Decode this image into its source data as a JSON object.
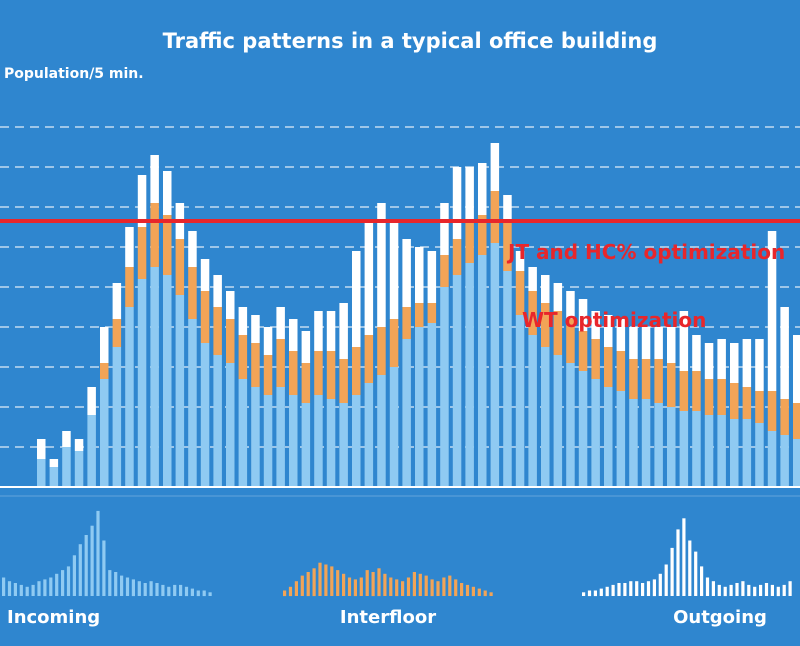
{
  "chart_data": {
    "type": "bar",
    "title": "Traffic patterns in a typical office building",
    "ylabel": "Population/5 min.",
    "stacked": true,
    "ylim": [
      0,
      100
    ],
    "series": [
      {
        "name": "Incoming",
        "color": "#8fcaf2",
        "values": [
          7,
          5,
          10,
          9,
          18,
          27,
          35,
          45,
          52,
          55,
          53,
          48,
          42,
          36,
          33,
          31,
          27,
          25,
          23,
          25,
          23,
          21,
          23,
          22,
          21,
          23,
          26,
          28,
          30,
          37,
          40,
          41,
          50,
          53,
          56,
          58,
          61,
          54,
          43,
          38,
          35,
          33,
          31,
          29,
          27,
          25,
          24,
          22,
          22,
          21,
          20,
          19,
          19,
          18,
          18,
          17,
          17,
          16,
          14,
          13,
          12,
          9,
          8,
          6,
          4,
          3
        ]
      },
      {
        "name": "Interfloor",
        "color": "#f2a457",
        "values": [
          0,
          0,
          0,
          0,
          0,
          4,
          7,
          10,
          13,
          16,
          15,
          14,
          13,
          13,
          12,
          11,
          11,
          11,
          10,
          12,
          11,
          10,
          11,
          12,
          11,
          12,
          12,
          12,
          12,
          8,
          6,
          5,
          8,
          9,
          10,
          10,
          13,
          12,
          11,
          11,
          11,
          11,
          11,
          10,
          10,
          10,
          10,
          10,
          10,
          11,
          11,
          10,
          10,
          9,
          9,
          9,
          8,
          8,
          10,
          9,
          9,
          9,
          8,
          6,
          4,
          4
        ]
      },
      {
        "name": "Outgoing",
        "color": "#ffffff",
        "values": [
          5,
          2,
          4,
          3,
          7,
          9,
          9,
          10,
          13,
          12,
          11,
          9,
          9,
          8,
          8,
          7,
          7,
          7,
          7,
          8,
          8,
          8,
          10,
          10,
          14,
          24,
          29,
          31,
          25,
          17,
          14,
          13,
          13,
          18,
          14,
          13,
          12,
          7,
          5,
          6,
          7,
          7,
          7,
          8,
          7,
          8,
          8,
          8,
          8,
          8,
          9,
          15,
          9,
          9,
          10,
          10,
          12,
          13,
          40,
          23,
          17,
          14,
          10,
          13,
          8,
          7
        ]
      }
    ],
    "reference_lines": [
      {
        "label": "JT and HC% optimization",
        "y": 66.5,
        "color": "#e8262b"
      },
      {
        "label": "WT optimization",
        "color": "#e8262b"
      }
    ],
    "panels": [
      {
        "name": "Incoming",
        "color": "#8fcaf2",
        "values": [
          10,
          8,
          7,
          6,
          5,
          6,
          8,
          9,
          10,
          12,
          14,
          16,
          22,
          28,
          33,
          38,
          46,
          30,
          14,
          13,
          11,
          10,
          9,
          8,
          7,
          8,
          7,
          6,
          5,
          6,
          6,
          5,
          4,
          3,
          3,
          2
        ]
      },
      {
        "name": "Interfloor",
        "color": "#f2a457",
        "values": [
          3,
          5,
          8,
          11,
          13,
          15,
          18,
          17,
          16,
          14,
          12,
          10,
          9,
          10,
          14,
          13,
          15,
          12,
          10,
          9,
          8,
          10,
          13,
          12,
          11,
          9,
          8,
          10,
          11,
          9,
          7,
          6,
          5,
          4,
          3,
          2
        ]
      },
      {
        "name": "Outgoing",
        "color": "#ffffff",
        "values": [
          2,
          3,
          3,
          4,
          5,
          6,
          7,
          7,
          8,
          8,
          7,
          8,
          9,
          12,
          17,
          26,
          36,
          42,
          30,
          24,
          16,
          10,
          8,
          6,
          5,
          6,
          7,
          8,
          6,
          5,
          6,
          7,
          6,
          5,
          6,
          8
        ]
      }
    ],
    "grid": true
  }
}
